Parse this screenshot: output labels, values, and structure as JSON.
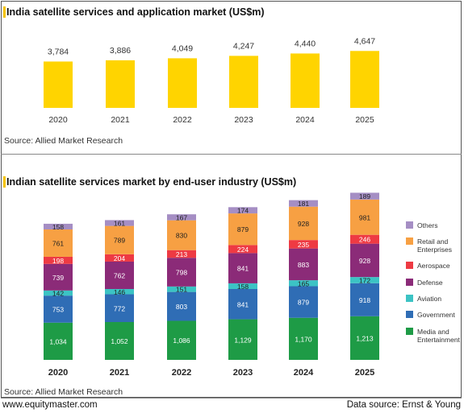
{
  "chart_data": [
    {
      "type": "bar",
      "title": "India satellite services and application market (US$m)",
      "categories": [
        "2020",
        "2021",
        "2022",
        "2023",
        "2024",
        "2025"
      ],
      "values": [
        3784,
        3886,
        4049,
        4247,
        4440,
        4647
      ],
      "value_labels": [
        "3,784",
        "3,886",
        "4,049",
        "4,247",
        "4,440",
        "4,647"
      ],
      "color": "#FFD400",
      "grid": false,
      "source": "Source: Allied Market Research"
    },
    {
      "type": "bar",
      "stacked": true,
      "title": "Indian satellite services market by end-user industry (US$m)",
      "categories": [
        "2020",
        "2021",
        "2022",
        "2023",
        "2024",
        "2025"
      ],
      "series": [
        {
          "name": "Media and Entertainment",
          "color": "#1E9B46",
          "values": [
            1034,
            1052,
            1086,
            1129,
            1170,
            1213
          ],
          "labels": [
            "1,034",
            "1,052",
            "1,086",
            "1,129",
            "1,170",
            "1,213"
          ]
        },
        {
          "name": "Government",
          "color": "#2F6DB5",
          "values": [
            753,
            772,
            803,
            841,
            879,
            918
          ],
          "labels": [
            "753",
            "772",
            "803",
            "841",
            "879",
            "918"
          ]
        },
        {
          "name": "Aviation",
          "color": "#3CC3C4",
          "values": [
            142,
            146,
            151,
            158,
            165,
            172
          ],
          "labels": [
            "142",
            "146",
            "151",
            "158",
            "165",
            "172"
          ]
        },
        {
          "name": "Defense",
          "color": "#8B2B78",
          "values": [
            739,
            762,
            798,
            841,
            883,
            928
          ],
          "labels": [
            "739",
            "762",
            "798",
            "841",
            "883",
            "928"
          ]
        },
        {
          "name": "Aerospace",
          "color": "#EE3A43",
          "values": [
            198,
            204,
            213,
            224,
            235,
            246
          ],
          "labels": [
            "198",
            "204",
            "213",
            "224",
            "235",
            "246"
          ]
        },
        {
          "name": "Retail and Enterprises",
          "color": "#F7A043",
          "values": [
            761,
            789,
            830,
            879,
            928,
            981
          ],
          "labels": [
            "761",
            "789",
            "830",
            "879",
            "928",
            "981"
          ]
        },
        {
          "name": "Others",
          "color": "#A58EC4",
          "values": [
            158,
            161,
            167,
            174,
            181,
            189
          ],
          "labels": [
            "158",
            "161",
            "167",
            "174",
            "181",
            "189"
          ]
        }
      ],
      "legend": "right",
      "legend_order": [
        "Others",
        "Retail and Enterprises",
        "Aerospace",
        "Defense",
        "Aviation",
        "Government",
        "Media and Entertainment"
      ],
      "grid": false,
      "source": "Source: Allied Market Research"
    }
  ],
  "footer": {
    "website": "www.equitymaster.com",
    "data_source": "Data source: Ernst & Young"
  }
}
